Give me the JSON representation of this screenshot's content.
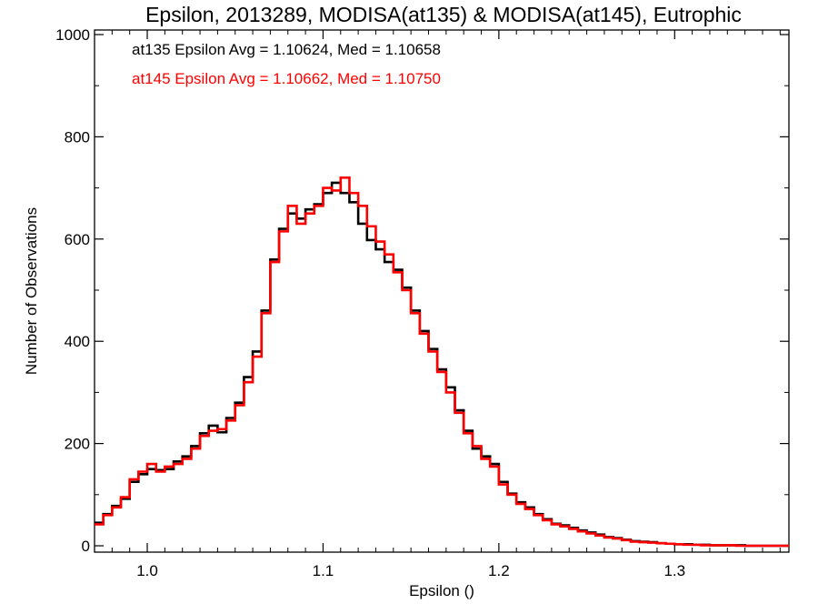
{
  "chart_data": {
    "type": "histogram",
    "title": "Epsilon, 2013289, MODISA(at135) & MODISA(at145), Eutrophic",
    "xlabel": "Epsilon ()",
    "ylabel": "Number of Observations",
    "xlim": [
      0.97,
      1.365
    ],
    "ylim": [
      0,
      1000
    ],
    "x_ticks": [
      1.0,
      1.1,
      1.2,
      1.3
    ],
    "x_tick_labels": [
      "1.0",
      "1.1",
      "1.2",
      "1.3"
    ],
    "y_ticks": [
      0,
      200,
      400,
      600,
      800,
      1000
    ],
    "y_tick_labels": [
      "0",
      "200",
      "400",
      "600",
      "800",
      "1000"
    ],
    "grid": false,
    "annotations": [
      {
        "text": "at135 Epsilon Avg = 1.10624, Med = 1.10658",
        "color": "#000000"
      },
      {
        "text": "at145 Epsilon Avg = 1.10662, Med = 1.10750",
        "color": "#ff0000"
      }
    ],
    "series": [
      {
        "color": "#000000",
        "x": [
          0.97,
          0.975,
          0.98,
          0.985,
          0.99,
          0.995,
          1.0,
          1.005,
          1.01,
          1.015,
          1.02,
          1.025,
          1.03,
          1.035,
          1.04,
          1.045,
          1.05,
          1.055,
          1.06,
          1.065,
          1.07,
          1.075,
          1.08,
          1.085,
          1.09,
          1.095,
          1.1,
          1.105,
          1.11,
          1.115,
          1.12,
          1.125,
          1.13,
          1.135,
          1.14,
          1.145,
          1.15,
          1.155,
          1.16,
          1.165,
          1.17,
          1.175,
          1.18,
          1.185,
          1.19,
          1.195,
          1.2,
          1.205,
          1.21,
          1.215,
          1.22,
          1.225,
          1.23,
          1.235,
          1.24,
          1.245,
          1.25,
          1.255,
          1.26,
          1.265,
          1.27,
          1.275,
          1.28,
          1.285,
          1.29,
          1.295,
          1.3,
          1.305,
          1.31,
          1.315,
          1.32,
          1.325,
          1.33,
          1.335,
          1.34,
          1.345,
          1.35,
          1.355,
          1.36
        ],
        "y": [
          45,
          62,
          78,
          92,
          125,
          140,
          150,
          148,
          150,
          165,
          175,
          195,
          220,
          235,
          222,
          250,
          280,
          330,
          380,
          460,
          560,
          620,
          650,
          640,
          658,
          668,
          690,
          710,
          690,
          672,
          630,
          598,
          580,
          555,
          540,
          505,
          460,
          420,
          385,
          345,
          310,
          265,
          225,
          190,
          175,
          160,
          125,
          102,
          85,
          75,
          62,
          52,
          43,
          40,
          35,
          30,
          26,
          22,
          17,
          15,
          12,
          9,
          8,
          7,
          5,
          4,
          3,
          3,
          2,
          2,
          1,
          1,
          1,
          1,
          0,
          0,
          0,
          0,
          0
        ]
      },
      {
        "color": "#ff0000",
        "x": [
          0.97,
          0.975,
          0.98,
          0.985,
          0.99,
          0.995,
          1.0,
          1.005,
          1.01,
          1.015,
          1.02,
          1.025,
          1.03,
          1.035,
          1.04,
          1.045,
          1.05,
          1.055,
          1.06,
          1.065,
          1.07,
          1.075,
          1.08,
          1.085,
          1.09,
          1.095,
          1.1,
          1.105,
          1.11,
          1.115,
          1.12,
          1.125,
          1.13,
          1.135,
          1.14,
          1.145,
          1.15,
          1.155,
          1.16,
          1.165,
          1.17,
          1.175,
          1.18,
          1.185,
          1.19,
          1.195,
          1.2,
          1.205,
          1.21,
          1.215,
          1.22,
          1.225,
          1.23,
          1.235,
          1.24,
          1.245,
          1.25,
          1.255,
          1.26,
          1.265,
          1.27,
          1.275,
          1.28,
          1.285,
          1.29,
          1.295,
          1.3,
          1.305,
          1.31,
          1.315,
          1.32,
          1.325,
          1.33,
          1.335,
          1.34,
          1.345,
          1.35,
          1.355,
          1.36
        ],
        "y": [
          42,
          60,
          75,
          95,
          130,
          145,
          160,
          145,
          155,
          160,
          170,
          190,
          215,
          225,
          228,
          245,
          275,
          320,
          370,
          455,
          555,
          615,
          665,
          630,
          650,
          665,
          700,
          695,
          720,
          690,
          665,
          625,
          595,
          570,
          535,
          500,
          455,
          415,
          380,
          340,
          300,
          260,
          220,
          195,
          170,
          155,
          120,
          100,
          82,
          72,
          60,
          50,
          42,
          38,
          33,
          28,
          24,
          20,
          16,
          14,
          11,
          8,
          7,
          6,
          5,
          4,
          3,
          2,
          2,
          1,
          1,
          1,
          1,
          0,
          0,
          0,
          0,
          0,
          0
        ]
      }
    ]
  }
}
